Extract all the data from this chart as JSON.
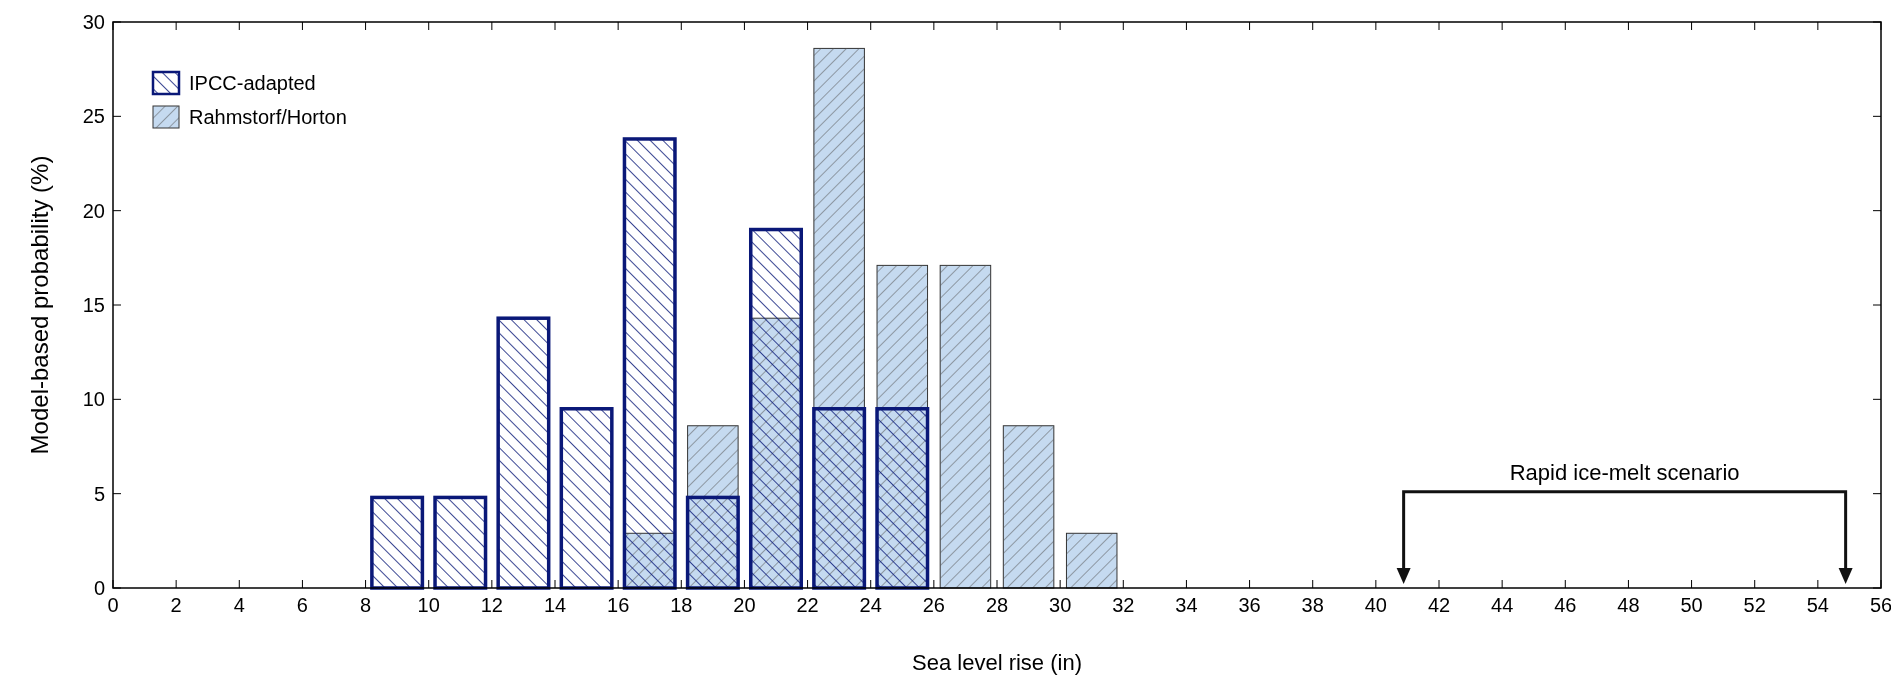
{
  "chart_data": {
    "type": "histogram",
    "xlabel": "Sea level rise (in)",
    "ylabel": "Model-based probability (%)",
    "bins": [
      8,
      10,
      12,
      14,
      16,
      18,
      20,
      22,
      24,
      26,
      28,
      30,
      32
    ],
    "series": [
      {
        "name": "IPCC-adapted",
        "color": "#0a1878",
        "values": [
          4.8,
          4.8,
          14.3,
          9.5,
          23.8,
          4.8,
          19.0,
          9.5,
          9.5,
          null,
          null,
          null
        ]
      },
      {
        "name": "Rahmstorf/Horton",
        "color": "#c5daf0",
        "values": [
          null,
          null,
          null,
          null,
          2.9,
          8.6,
          14.3,
          28.6,
          17.1,
          17.1,
          8.6,
          2.9
        ]
      }
    ],
    "xlim": [
      0,
      56
    ],
    "xticks": [
      0,
      2,
      4,
      6,
      8,
      10,
      12,
      14,
      16,
      18,
      20,
      22,
      24,
      26,
      28,
      30,
      32,
      34,
      36,
      38,
      40,
      42,
      44,
      46,
      48,
      50,
      52,
      54,
      56
    ],
    "ylim": [
      0,
      30
    ],
    "yticks": [
      0,
      5,
      10,
      15,
      20,
      25,
      30
    ],
    "annotations": [
      "Rapid ice-melt scenario"
    ],
    "legend": "top left"
  }
}
